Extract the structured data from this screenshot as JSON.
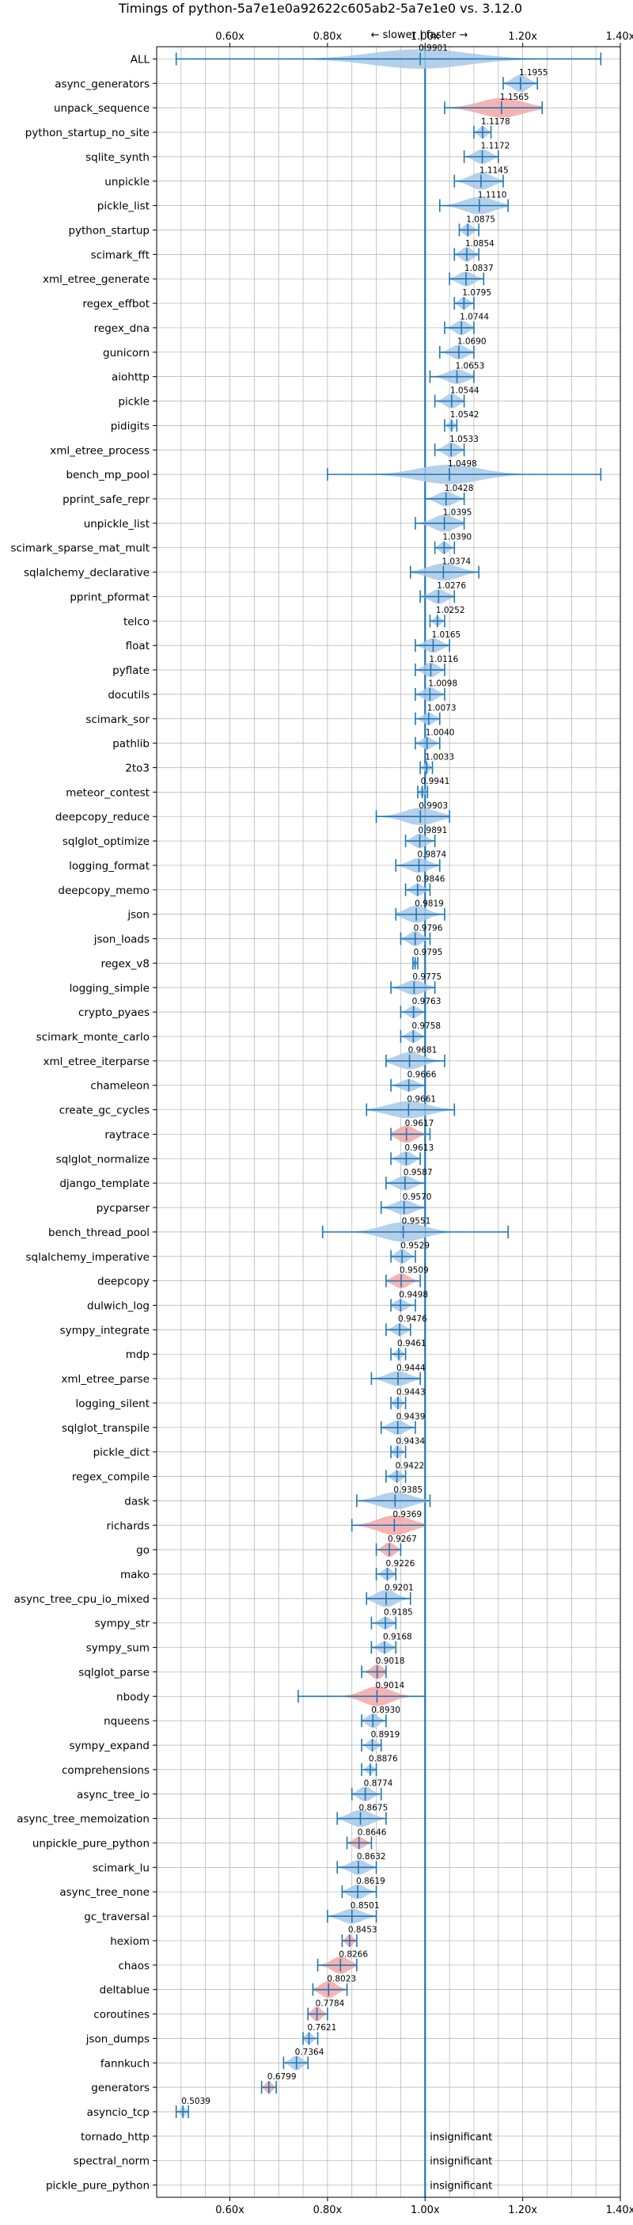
{
  "chart_data": {
    "type": "violin",
    "title": "Timings of python-5a7e1e0a92622c605ab2-5a7e1e0 vs. 3.12.0",
    "direction_note": "← slower | faster →",
    "xlim": [
      0.45,
      1.4
    ],
    "x_ticks": [
      0.6,
      0.8,
      1.0,
      1.2,
      1.4
    ],
    "x_tick_labels": [
      "0.60x",
      "0.80x",
      "1.00x",
      "1.20x",
      "1.40x"
    ],
    "grid": true,
    "colors": {
      "faster": "#a8c8e8",
      "slower": "#f4a6a6",
      "line": "#1f77b4",
      "grid": "#b0b0b0"
    },
    "insignificant_label": "insignificant",
    "benchmarks": [
      {
        "name": "ALL",
        "value": 0.9901,
        "min": 0.49,
        "max": 1.36,
        "width": 0.8,
        "color": "faster",
        "long_tail": true
      },
      {
        "name": "async_generators",
        "value": 1.1955,
        "min": 1.16,
        "max": 1.23,
        "width": 0.7,
        "color": "faster"
      },
      {
        "name": "unpack_sequence",
        "value": 1.1565,
        "min": 1.04,
        "max": 1.24,
        "width": 0.8,
        "color": "slower"
      },
      {
        "name": "python_startup_no_site",
        "value": 1.1178,
        "min": 1.1,
        "max": 1.135,
        "width": 0.5,
        "color": "faster"
      },
      {
        "name": "sqlite_synth",
        "value": 1.1172,
        "min": 1.08,
        "max": 1.15,
        "width": 0.6,
        "color": "faster"
      },
      {
        "name": "unpickle",
        "value": 1.1145,
        "min": 1.06,
        "max": 1.16,
        "width": 0.7,
        "color": "faster"
      },
      {
        "name": "pickle_list",
        "value": 1.111,
        "min": 1.03,
        "max": 1.17,
        "width": 0.7,
        "color": "faster"
      },
      {
        "name": "python_startup",
        "value": 1.0875,
        "min": 1.07,
        "max": 1.11,
        "width": 0.5,
        "color": "faster"
      },
      {
        "name": "scimark_fft",
        "value": 1.0854,
        "min": 1.06,
        "max": 1.11,
        "width": 0.6,
        "color": "faster"
      },
      {
        "name": "xml_etree_generate",
        "value": 1.0837,
        "min": 1.05,
        "max": 1.12,
        "width": 0.6,
        "color": "faster"
      },
      {
        "name": "regex_effbot",
        "value": 1.0795,
        "min": 1.06,
        "max": 1.1,
        "width": 0.5,
        "color": "faster"
      },
      {
        "name": "regex_dna",
        "value": 1.0744,
        "min": 1.04,
        "max": 1.1,
        "width": 0.6,
        "color": "faster"
      },
      {
        "name": "gunicorn",
        "value": 1.069,
        "min": 1.03,
        "max": 1.1,
        "width": 0.6,
        "color": "faster"
      },
      {
        "name": "aiohttp",
        "value": 1.0653,
        "min": 1.01,
        "max": 1.1,
        "width": 0.6,
        "color": "faster"
      },
      {
        "name": "pickle",
        "value": 1.0544,
        "min": 1.02,
        "max": 1.08,
        "width": 0.6,
        "color": "faster"
      },
      {
        "name": "pidigits",
        "value": 1.0542,
        "min": 1.04,
        "max": 1.065,
        "width": 0.4,
        "color": "faster"
      },
      {
        "name": "xml_etree_process",
        "value": 1.0533,
        "min": 1.02,
        "max": 1.08,
        "width": 0.6,
        "color": "faster"
      },
      {
        "name": "bench_mp_pool",
        "value": 1.0498,
        "min": 0.8,
        "max": 1.36,
        "width": 0.8,
        "color": "faster",
        "long_tail": true
      },
      {
        "name": "pprint_safe_repr",
        "value": 1.0428,
        "min": 1.0,
        "max": 1.08,
        "width": 0.6,
        "color": "faster"
      },
      {
        "name": "unpickle_list",
        "value": 1.0395,
        "min": 0.98,
        "max": 1.08,
        "width": 0.7,
        "color": "faster"
      },
      {
        "name": "scimark_sparse_mat_mult",
        "value": 1.039,
        "min": 1.02,
        "max": 1.06,
        "width": 0.5,
        "color": "faster"
      },
      {
        "name": "sqlalchemy_declarative",
        "value": 1.0374,
        "min": 0.97,
        "max": 1.11,
        "width": 0.7,
        "color": "faster"
      },
      {
        "name": "pprint_pformat",
        "value": 1.0276,
        "min": 0.99,
        "max": 1.06,
        "width": 0.6,
        "color": "faster"
      },
      {
        "name": "telco",
        "value": 1.0252,
        "min": 1.01,
        "max": 1.04,
        "width": 0.4,
        "color": "faster"
      },
      {
        "name": "float",
        "value": 1.0165,
        "min": 0.98,
        "max": 1.05,
        "width": 0.6,
        "color": "faster"
      },
      {
        "name": "pyflate",
        "value": 1.0116,
        "min": 0.98,
        "max": 1.04,
        "width": 0.6,
        "color": "faster"
      },
      {
        "name": "docutils",
        "value": 1.0098,
        "min": 0.98,
        "max": 1.04,
        "width": 0.6,
        "color": "faster"
      },
      {
        "name": "scimark_sor",
        "value": 1.0073,
        "min": 0.98,
        "max": 1.03,
        "width": 0.5,
        "color": "faster"
      },
      {
        "name": "pathlib",
        "value": 1.004,
        "min": 0.98,
        "max": 1.03,
        "width": 0.5,
        "color": "faster"
      },
      {
        "name": "2to3",
        "value": 1.0033,
        "min": 0.99,
        "max": 1.015,
        "width": 0.4,
        "color": "faster"
      },
      {
        "name": "meteor_contest",
        "value": 0.9941,
        "min": 0.985,
        "max": 1.005,
        "width": 0.4,
        "color": "faster"
      },
      {
        "name": "deepcopy_reduce",
        "value": 0.9903,
        "min": 0.9,
        "max": 1.05,
        "width": 0.7,
        "color": "faster"
      },
      {
        "name": "sqlglot_optimize",
        "value": 0.9891,
        "min": 0.96,
        "max": 1.02,
        "width": 0.6,
        "color": "faster"
      },
      {
        "name": "logging_format",
        "value": 0.9874,
        "min": 0.94,
        "max": 1.03,
        "width": 0.6,
        "color": "faster"
      },
      {
        "name": "deepcopy_memo",
        "value": 0.9846,
        "min": 0.96,
        "max": 1.01,
        "width": 0.5,
        "color": "faster"
      },
      {
        "name": "json",
        "value": 0.9819,
        "min": 0.94,
        "max": 1.04,
        "width": 0.7,
        "color": "faster"
      },
      {
        "name": "json_loads",
        "value": 0.9796,
        "min": 0.95,
        "max": 1.01,
        "width": 0.6,
        "color": "faster"
      },
      {
        "name": "regex_v8",
        "value": 0.9795,
        "min": 0.975,
        "max": 0.985,
        "width": 0.4,
        "color": "faster"
      },
      {
        "name": "logging_simple",
        "value": 0.9775,
        "min": 0.93,
        "max": 1.02,
        "width": 0.6,
        "color": "faster"
      },
      {
        "name": "crypto_pyaes",
        "value": 0.9763,
        "min": 0.95,
        "max": 1.0,
        "width": 0.5,
        "color": "faster"
      },
      {
        "name": "scimark_monte_carlo",
        "value": 0.9758,
        "min": 0.95,
        "max": 1.0,
        "width": 0.5,
        "color": "faster"
      },
      {
        "name": "xml_etree_iterparse",
        "value": 0.9681,
        "min": 0.92,
        "max": 1.04,
        "width": 0.7,
        "color": "faster"
      },
      {
        "name": "chameleon",
        "value": 0.9666,
        "min": 0.93,
        "max": 1.0,
        "width": 0.5,
        "color": "faster"
      },
      {
        "name": "create_gc_cycles",
        "value": 0.9661,
        "min": 0.88,
        "max": 1.06,
        "width": 0.7,
        "color": "faster"
      },
      {
        "name": "raytrace",
        "value": 0.9617,
        "min": 0.93,
        "max": 1.01,
        "width": 0.7,
        "color": "slower"
      },
      {
        "name": "sqlglot_normalize",
        "value": 0.9613,
        "min": 0.93,
        "max": 0.99,
        "width": 0.6,
        "color": "faster"
      },
      {
        "name": "django_template",
        "value": 0.9587,
        "min": 0.92,
        "max": 1.0,
        "width": 0.6,
        "color": "faster"
      },
      {
        "name": "pycparser",
        "value": 0.957,
        "min": 0.91,
        "max": 1.0,
        "width": 0.6,
        "color": "faster"
      },
      {
        "name": "bench_thread_pool",
        "value": 0.9551,
        "min": 0.79,
        "max": 1.17,
        "width": 0.8,
        "color": "faster",
        "long_tail": true
      },
      {
        "name": "sqlalchemy_imperative",
        "value": 0.9529,
        "min": 0.93,
        "max": 0.98,
        "width": 0.6,
        "color": "faster"
      },
      {
        "name": "deepcopy",
        "value": 0.9509,
        "min": 0.92,
        "max": 0.99,
        "width": 0.6,
        "color": "slower"
      },
      {
        "name": "dulwich_log",
        "value": 0.9498,
        "min": 0.93,
        "max": 0.98,
        "width": 0.5,
        "color": "faster"
      },
      {
        "name": "sympy_integrate",
        "value": 0.9476,
        "min": 0.92,
        "max": 0.97,
        "width": 0.5,
        "color": "faster"
      },
      {
        "name": "mdp",
        "value": 0.9461,
        "min": 0.93,
        "max": 0.96,
        "width": 0.4,
        "color": "faster"
      },
      {
        "name": "xml_etree_parse",
        "value": 0.9444,
        "min": 0.89,
        "max": 0.99,
        "width": 0.6,
        "color": "faster"
      },
      {
        "name": "logging_silent",
        "value": 0.9443,
        "min": 0.93,
        "max": 0.96,
        "width": 0.5,
        "color": "faster"
      },
      {
        "name": "sqlglot_transpile",
        "value": 0.9439,
        "min": 0.91,
        "max": 0.98,
        "width": 0.6,
        "color": "faster"
      },
      {
        "name": "pickle_dict",
        "value": 0.9434,
        "min": 0.93,
        "max": 0.96,
        "width": 0.5,
        "color": "faster"
      },
      {
        "name": "regex_compile",
        "value": 0.9422,
        "min": 0.92,
        "max": 0.96,
        "width": 0.5,
        "color": "faster"
      },
      {
        "name": "dask",
        "value": 0.9385,
        "min": 0.86,
        "max": 1.01,
        "width": 0.7,
        "color": "faster"
      },
      {
        "name": "richards",
        "value": 0.9369,
        "min": 0.85,
        "max": 1.0,
        "width": 0.8,
        "color": "slower"
      },
      {
        "name": "go",
        "value": 0.9267,
        "min": 0.9,
        "max": 0.95,
        "width": 0.6,
        "color": "slower"
      },
      {
        "name": "mako",
        "value": 0.9226,
        "min": 0.9,
        "max": 0.94,
        "width": 0.5,
        "color": "faster"
      },
      {
        "name": "async_tree_cpu_io_mixed",
        "value": 0.9201,
        "min": 0.88,
        "max": 0.97,
        "width": 0.7,
        "color": "faster"
      },
      {
        "name": "sympy_str",
        "value": 0.9185,
        "min": 0.89,
        "max": 0.94,
        "width": 0.5,
        "color": "faster"
      },
      {
        "name": "sympy_sum",
        "value": 0.9168,
        "min": 0.89,
        "max": 0.94,
        "width": 0.5,
        "color": "faster"
      },
      {
        "name": "sqlglot_parse",
        "value": 0.9018,
        "min": 0.87,
        "max": 0.92,
        "width": 0.6,
        "color": "slower"
      },
      {
        "name": "nbody",
        "value": 0.9014,
        "min": 0.74,
        "max": 1.0,
        "width": 0.8,
        "color": "slower",
        "long_tail": true
      },
      {
        "name": "nqueens",
        "value": 0.893,
        "min": 0.87,
        "max": 0.92,
        "width": 0.6,
        "color": "faster"
      },
      {
        "name": "sympy_expand",
        "value": 0.8919,
        "min": 0.87,
        "max": 0.91,
        "width": 0.5,
        "color": "faster"
      },
      {
        "name": "comprehensions",
        "value": 0.8876,
        "min": 0.87,
        "max": 0.9,
        "width": 0.4,
        "color": "faster"
      },
      {
        "name": "async_tree_io",
        "value": 0.8774,
        "min": 0.85,
        "max": 0.91,
        "width": 0.6,
        "color": "faster"
      },
      {
        "name": "async_tree_memoization",
        "value": 0.8675,
        "min": 0.82,
        "max": 0.92,
        "width": 0.7,
        "color": "faster"
      },
      {
        "name": "unpickle_pure_python",
        "value": 0.8646,
        "min": 0.84,
        "max": 0.89,
        "width": 0.5,
        "color": "slower"
      },
      {
        "name": "scimark_lu",
        "value": 0.8632,
        "min": 0.82,
        "max": 0.9,
        "width": 0.6,
        "color": "faster"
      },
      {
        "name": "async_tree_none",
        "value": 0.8619,
        "min": 0.83,
        "max": 0.9,
        "width": 0.6,
        "color": "faster"
      },
      {
        "name": "gc_traversal",
        "value": 0.8501,
        "min": 0.8,
        "max": 0.9,
        "width": 0.6,
        "color": "faster"
      },
      {
        "name": "hexiom",
        "value": 0.8453,
        "min": 0.83,
        "max": 0.86,
        "width": 0.5,
        "color": "slower"
      },
      {
        "name": "chaos",
        "value": 0.8266,
        "min": 0.78,
        "max": 0.86,
        "width": 0.7,
        "color": "slower"
      },
      {
        "name": "deltablue",
        "value": 0.8023,
        "min": 0.77,
        "max": 0.84,
        "width": 0.7,
        "color": "slower"
      },
      {
        "name": "coroutines",
        "value": 0.7784,
        "min": 0.76,
        "max": 0.8,
        "width": 0.6,
        "color": "slower"
      },
      {
        "name": "json_dumps",
        "value": 0.7621,
        "min": 0.75,
        "max": 0.78,
        "width": 0.5,
        "color": "faster"
      },
      {
        "name": "fannkuch",
        "value": 0.7364,
        "min": 0.71,
        "max": 0.76,
        "width": 0.6,
        "color": "faster"
      },
      {
        "name": "generators",
        "value": 0.6799,
        "min": 0.665,
        "max": 0.695,
        "width": 0.5,
        "color": "slower"
      },
      {
        "name": "asyncio_tcp",
        "value": 0.5039,
        "min": 0.49,
        "max": 0.515,
        "width": 0.4,
        "color": "faster"
      },
      {
        "name": "tornado_http",
        "value": null,
        "insignificant": true
      },
      {
        "name": "spectral_norm",
        "value": null,
        "insignificant": true
      },
      {
        "name": "pickle_pure_python",
        "value": null,
        "insignificant": true
      }
    ]
  }
}
